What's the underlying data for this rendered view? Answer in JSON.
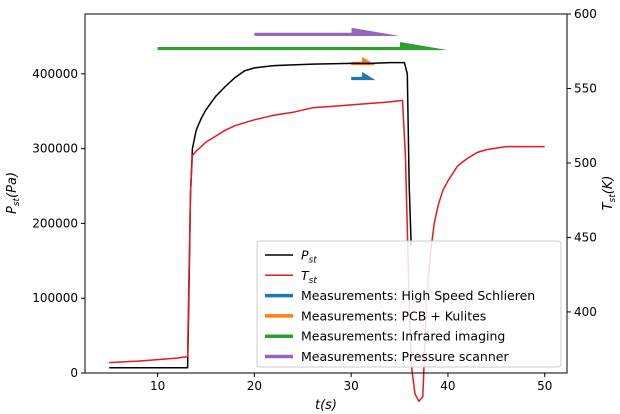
{
  "chart_data": {
    "type": "line",
    "xlabel": "t(s)",
    "ylabel_left": "P_st(Pa)",
    "ylabel_right": "T_st(K)",
    "xlim": [
      2.5,
      52.3
    ],
    "ylim_left": [
      0,
      480000
    ],
    "ylim_right": [
      359,
      600
    ],
    "x_ticks": [
      10,
      20,
      30,
      40,
      50
    ],
    "y_left_ticks": [
      0,
      100000,
      200000,
      300000,
      400000
    ],
    "y_right_ticks": [
      400,
      450,
      500,
      550,
      600
    ],
    "grid": false,
    "legend_position": "lower-right",
    "legend": [
      {
        "label": "P_st",
        "sym": "P",
        "sub": "st",
        "color": "#000000",
        "lw": 1.5
      },
      {
        "label": "T_st",
        "sym": "T",
        "sub": "st",
        "color": "#e41a1c",
        "lw": 1.5
      },
      {
        "label": "Measurements: High Speed Schlieren",
        "color": "#1f77b4",
        "lw": 3.5
      },
      {
        "label": "Measurements: PCB + Kulites",
        "color": "#ff7f0e",
        "lw": 3.5
      },
      {
        "label": "Measurements: Infrared imaging",
        "color": "#2ca02c",
        "lw": 3.5
      },
      {
        "label": "Measurements: Pressure scanner",
        "color": "#9467bd",
        "lw": 3.5
      }
    ],
    "series": [
      {
        "name": "P_st",
        "axis": "left",
        "color": "#000000",
        "x": [
          5,
          13.1,
          13.2,
          13.4,
          13.6,
          14.0,
          14.5,
          15.0,
          16.0,
          17.0,
          18.0,
          19.0,
          20.0,
          22.0,
          24.0,
          26.0,
          28.0,
          30.0,
          32.0,
          34.0,
          35.5,
          35.8,
          36.0,
          36.2
        ],
        "y": [
          7000,
          7000,
          80000,
          240000,
          300000,
          325000,
          340000,
          352000,
          370000,
          383000,
          395000,
          404000,
          408000,
          411000,
          412000,
          413000,
          413500,
          414000,
          414000,
          415000,
          415000,
          400000,
          250000,
          170000
        ]
      },
      {
        "name": "T_st",
        "axis": "right",
        "color": "#e41a1c",
        "x": [
          5,
          8,
          10,
          12,
          13.1,
          13.2,
          13.4,
          13.6,
          14,
          15,
          16,
          17,
          18,
          19,
          20,
          22,
          24,
          26,
          28,
          30,
          32,
          34,
          35.3,
          35.6,
          35.9,
          36.2,
          36.6,
          37.0,
          37.4,
          37.8,
          38.2,
          38.6,
          39.0,
          39.5,
          40,
          41,
          42,
          43,
          44,
          45,
          46,
          47,
          48,
          49,
          50
        ],
        "y": [
          366,
          367,
          368,
          369,
          370,
          410,
          480,
          505,
          508,
          514,
          518,
          522,
          525,
          527,
          529,
          532,
          534,
          537,
          538,
          539,
          540,
          541,
          542,
          505,
          430,
          365,
          345,
          340,
          343,
          410,
          440,
          460,
          472,
          482,
          488,
          498,
          503,
          507,
          509,
          510,
          511,
          511,
          511,
          511,
          511
        ]
      }
    ],
    "measurement_ranges": [
      {
        "name": "Infrared imaging",
        "color": "#2ca02c",
        "start": 10,
        "end": 40,
        "y_level": 433000
      },
      {
        "name": "Pressure scanner",
        "color": "#9467bd",
        "start": 20,
        "end": 35,
        "y_level": 452000
      },
      {
        "name": "PCB + Kulites",
        "color": "#ff7f0e",
        "start": 30,
        "end": 32.5,
        "y_level": 413000
      },
      {
        "name": "High Speed Schlieren",
        "color": "#1f77b4",
        "start": 30,
        "end": 32.5,
        "y_level": 393000
      }
    ]
  }
}
